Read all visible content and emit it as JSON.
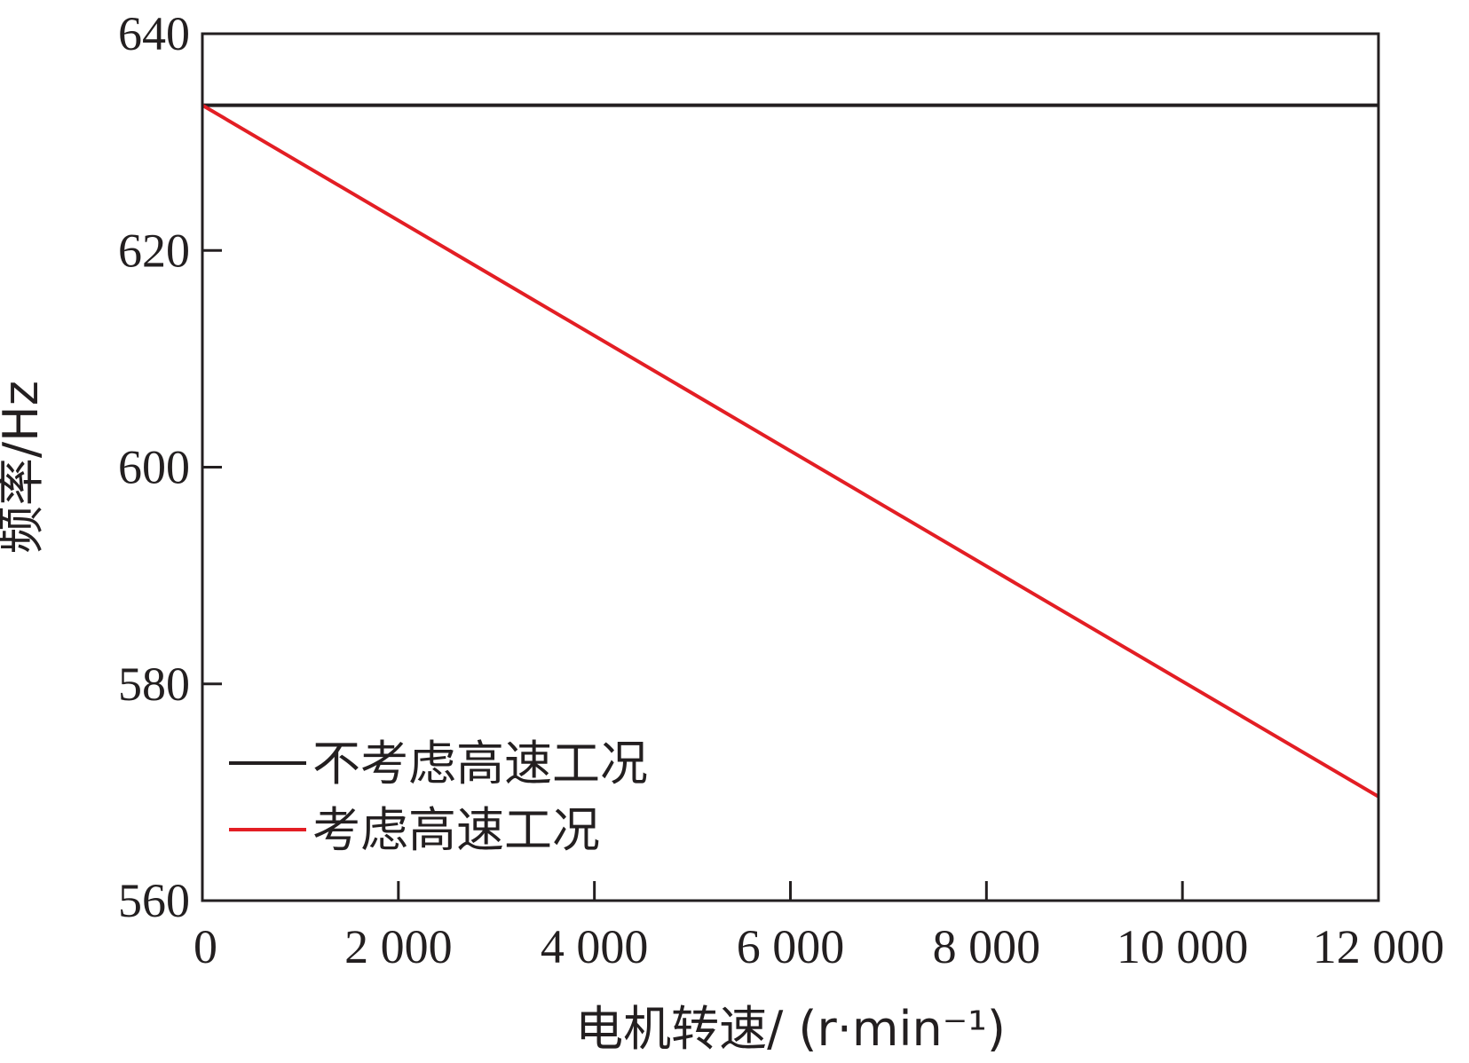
{
  "chart_data": {
    "type": "line",
    "xlabel": "电机转速/ (r·min⁻¹)",
    "ylabel": "频率/Hz",
    "xlim": [
      0,
      12000
    ],
    "ylim": [
      560,
      640
    ],
    "x_ticks": [
      0,
      2000,
      4000,
      6000,
      8000,
      10000,
      12000
    ],
    "x_tick_labels": [
      "0",
      "2 000",
      "4 000",
      "6 000",
      "8 000",
      "10 000",
      "12 000"
    ],
    "y_ticks": [
      560,
      580,
      600,
      620,
      640
    ],
    "y_tick_labels": [
      "560",
      "580",
      "600",
      "620",
      "640"
    ],
    "grid": false,
    "legend_position": "bottom-left",
    "series": [
      {
        "name": "不考虑高速工况",
        "color": "#231f20",
        "x": [
          0,
          12000
        ],
        "y": [
          633.4,
          633.4
        ]
      },
      {
        "name": "考虑高速工况",
        "color": "#e31e24",
        "x": [
          0,
          12000
        ],
        "y": [
          633.4,
          569.6
        ]
      }
    ]
  }
}
